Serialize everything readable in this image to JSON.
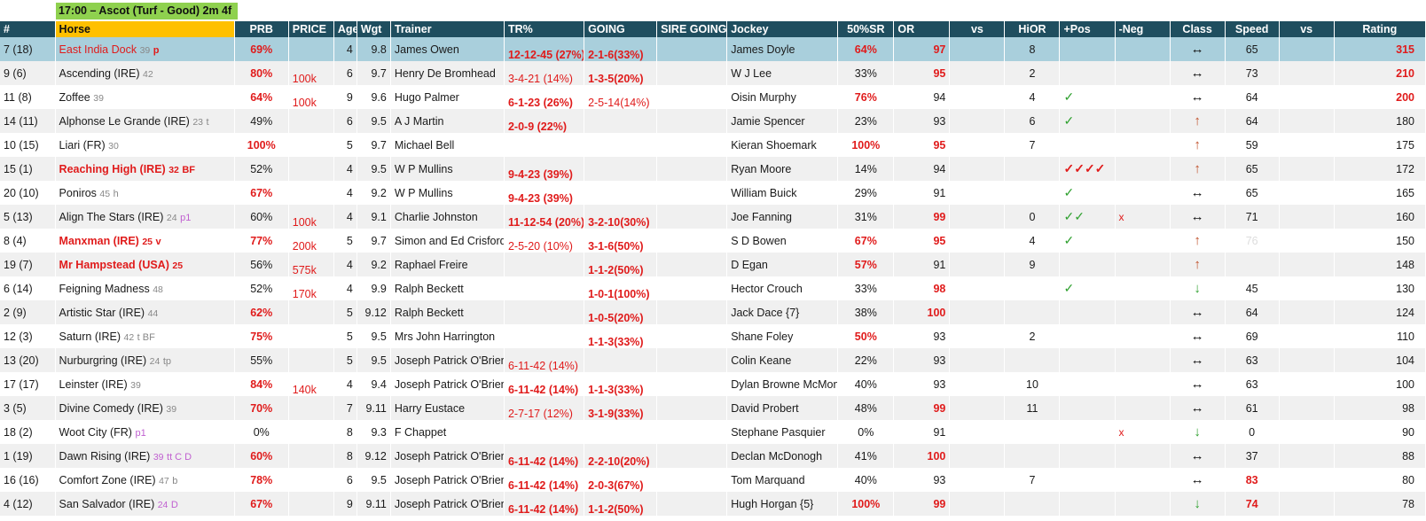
{
  "race": {
    "title": "17:00 – Ascot (Turf - Good) 2m 4f"
  },
  "headers": {
    "num": "#",
    "horse": "Horse",
    "prb": "PRB",
    "price": "PRICE",
    "age": "Age",
    "wgt": "Wgt",
    "trainer": "Trainer",
    "trp": "TR%",
    "going": "GOING",
    "sire_going": "SIRE GOING",
    "jockey": "Jockey",
    "sr": "50%SR",
    "or": "OR",
    "vs": "vs",
    "hior": "HiOR",
    "pos": "+Pos",
    "neg": "-Neg",
    "cls": "Class",
    "speed": "Speed",
    "vs2": "vs",
    "rating": "Rating"
  },
  "rows": [
    {
      "num": "7 (18)",
      "horse": "East India Dock",
      "meta": "39",
      "tag": "p",
      "prb": "69%",
      "price": "",
      "age": "4",
      "wgt": "9.8",
      "trainer": "James Owen",
      "trp": "12-12-45 (27%)",
      "going": "2-1-6(33%)",
      "jockey": "James Doyle",
      "sr": "64%",
      "or": "97",
      "hior": "8",
      "pos": "",
      "neg": "",
      "cls": "↔",
      "speed": "65",
      "rating": "315"
    },
    {
      "num": "9 (6)",
      "horse": "Ascending (IRE)",
      "meta": "42",
      "tag": "",
      "prb": "80%",
      "price": "100k",
      "age": "6",
      "wgt": "9.7",
      "trainer": "Henry De Bromhead",
      "trp": "3-4-21 (14%)",
      "going": "1-3-5(20%)",
      "jockey": "W J Lee",
      "sr": "33%",
      "or": "95",
      "hior": "2",
      "pos": "",
      "neg": "",
      "cls": "↔",
      "speed": "73",
      "rating": "210"
    },
    {
      "num": "11 (8)",
      "horse": "Zoffee",
      "meta": "39",
      "tag": "",
      "prb": "64%",
      "price": "100k",
      "age": "9",
      "wgt": "9.6",
      "trainer": "Hugo Palmer",
      "trp": "6-1-23 (26%)",
      "going": "2-5-14(14%)",
      "jockey": "Oisin Murphy",
      "sr": "76%",
      "or": "94",
      "hior": "4",
      "pos": "✓",
      "neg": "",
      "cls": "↔",
      "speed": "64",
      "rating": "200"
    },
    {
      "num": "14 (11)",
      "horse": "Alphonse Le Grande (IRE)",
      "meta": "23",
      "tag": "t",
      "prb": "49%",
      "price": "",
      "age": "6",
      "wgt": "9.5",
      "trainer": "A J Martin",
      "trp": "2-0-9 (22%)",
      "going": "",
      "jockey": "Jamie Spencer",
      "sr": "23%",
      "or": "93",
      "hior": "6",
      "pos": "✓",
      "neg": "",
      "cls": "↑",
      "speed": "64",
      "rating": "180"
    },
    {
      "num": "10 (15)",
      "horse": "Liari (FR)",
      "meta": "30",
      "tag": "",
      "prb": "100%",
      "price": "",
      "age": "5",
      "wgt": "9.7",
      "trainer": "Michael Bell",
      "trp": "",
      "going": "",
      "jockey": "Kieran Shoemark",
      "sr": "100%",
      "or": "95",
      "hior": "7",
      "pos": "",
      "neg": "",
      "cls": "↑",
      "speed": "59",
      "rating": "175"
    },
    {
      "num": "15 (1)",
      "horse": "Reaching High (IRE)",
      "meta": "32",
      "tag": "BF",
      "prb": "52%",
      "price": "",
      "age": "4",
      "wgt": "9.5",
      "trainer": "W P Mullins",
      "trp": "9-4-23 (39%)",
      "going": "",
      "jockey": "Ryan Moore",
      "sr": "14%",
      "or": "94",
      "hior": "",
      "pos": "✓✓✓✓",
      "neg": "",
      "cls": "↑",
      "speed": "65",
      "rating": "172"
    },
    {
      "num": "20 (10)",
      "horse": "Poniros",
      "meta": "45",
      "tag": "h",
      "prb": "67%",
      "price": "",
      "age": "4",
      "wgt": "9.2",
      "trainer": "W P Mullins",
      "trp": "9-4-23 (39%)",
      "going": "",
      "jockey": "William Buick",
      "sr": "29%",
      "or": "91",
      "hior": "",
      "pos": "✓",
      "neg": "",
      "cls": "↔",
      "speed": "65",
      "rating": "165"
    },
    {
      "num": "5 (13)",
      "horse": "Align The Stars (IRE)",
      "meta": "24",
      "tag": "p1",
      "prb": "60%",
      "price": "100k",
      "age": "4",
      "wgt": "9.1",
      "trainer": "Charlie Johnston",
      "trp": "11-12-54 (20%)",
      "going": "3-2-10(30%)",
      "jockey": "Joe Fanning",
      "sr": "31%",
      "or": "99",
      "hior": "0",
      "pos": "✓✓",
      "neg": "x",
      "cls": "↔",
      "speed": "71",
      "rating": "160"
    },
    {
      "num": "8 (4)",
      "horse": "Manxman (IRE)",
      "meta": "25",
      "tag": "v",
      "prb": "77%",
      "price": "200k",
      "age": "5",
      "wgt": "9.7",
      "trainer": "Simon and Ed Crisford",
      "trp": "2-5-20 (10%)",
      "going": "3-1-6(50%)",
      "jockey": "S D Bowen",
      "sr": "67%",
      "or": "95",
      "hior": "4",
      "pos": "✓",
      "neg": "",
      "cls": "↑",
      "speed": "76",
      "rating": "150"
    },
    {
      "num": "19 (7)",
      "horse": "Mr Hampstead (USA)",
      "meta": "25",
      "tag": "",
      "prb": "56%",
      "price": "575k",
      "age": "4",
      "wgt": "9.2",
      "trainer": "Raphael Freire",
      "trp": "",
      "going": "1-1-2(50%)",
      "jockey": "D Egan",
      "sr": "57%",
      "or": "91",
      "hior": "9",
      "pos": "",
      "neg": "",
      "cls": "↑",
      "speed": "",
      "rating": "148"
    },
    {
      "num": "6 (14)",
      "horse": "Feigning Madness",
      "meta": "48",
      "tag": "",
      "prb": "52%",
      "price": "170k",
      "age": "4",
      "wgt": "9.9",
      "trainer": "Ralph Beckett",
      "trp": "",
      "going": "1-0-1(100%)",
      "jockey": "Hector Crouch",
      "sr": "33%",
      "or": "98",
      "hior": "",
      "pos": "✓",
      "neg": "",
      "cls": "↓",
      "speed": "45",
      "rating": "130"
    },
    {
      "num": "2 (9)",
      "horse": "Artistic Star (IRE)",
      "meta": "44",
      "tag": "",
      "prb": "62%",
      "price": "",
      "age": "5",
      "wgt": "9.12",
      "trainer": "Ralph Beckett",
      "trp": "",
      "going": "1-0-5(20%)",
      "jockey": "Jack Dace {7}",
      "sr": "38%",
      "or": "100",
      "hior": "",
      "pos": "",
      "neg": "",
      "cls": "↔",
      "speed": "64",
      "rating": "124"
    },
    {
      "num": "12 (3)",
      "horse": "Saturn (IRE)",
      "meta": "42",
      "tag": "t BF",
      "prb": "75%",
      "price": "",
      "age": "5",
      "wgt": "9.5",
      "trainer": "Mrs John Harrington",
      "trp": "",
      "going": "1-1-3(33%)",
      "jockey": "Shane Foley",
      "sr": "50%",
      "or": "93",
      "hior": "2",
      "pos": "",
      "neg": "",
      "cls": "↔",
      "speed": "69",
      "rating": "110"
    },
    {
      "num": "13 (20)",
      "horse": "Nurburgring (IRE)",
      "meta": "24",
      "tag": "tp",
      "prb": "55%",
      "price": "",
      "age": "5",
      "wgt": "9.5",
      "trainer": "Joseph Patrick O'Brien",
      "trp": "6-11-42 (14%)",
      "going": "",
      "jockey": "Colin Keane",
      "sr": "22%",
      "or": "93",
      "hior": "",
      "pos": "",
      "neg": "",
      "cls": "↔",
      "speed": "63",
      "rating": "104"
    },
    {
      "num": "17 (17)",
      "horse": "Leinster (IRE)",
      "meta": "39",
      "tag": "",
      "prb": "84%",
      "price": "140k",
      "age": "4",
      "wgt": "9.4",
      "trainer": "Joseph Patrick O'Brien",
      "trp": "6-11-42 (14%)",
      "going": "1-1-3(33%)",
      "jockey": "Dylan Browne McMona",
      "sr": "40%",
      "or": "93",
      "hior": "10",
      "pos": "",
      "neg": "",
      "cls": "↔",
      "speed": "63",
      "rating": "100"
    },
    {
      "num": "3 (5)",
      "horse": "Divine Comedy (IRE)",
      "meta": "39",
      "tag": "",
      "prb": "70%",
      "price": "",
      "age": "7",
      "wgt": "9.11",
      "trainer": "Harry Eustace",
      "trp": "2-7-17 (12%)",
      "going": "3-1-9(33%)",
      "jockey": "David Probert",
      "sr": "48%",
      "or": "99",
      "hior": "11",
      "pos": "",
      "neg": "",
      "cls": "↔",
      "speed": "61",
      "rating": "98"
    },
    {
      "num": "18 (2)",
      "horse": "Woot City (FR)",
      "meta": "",
      "tag": "p1",
      "prb": "0%",
      "price": "",
      "age": "8",
      "wgt": "9.3",
      "trainer": "F Chappet",
      "trp": "",
      "going": "",
      "jockey": "Stephane Pasquier",
      "sr": "0%",
      "or": "91",
      "hior": "",
      "pos": "",
      "neg": "x",
      "cls": "↓",
      "speed": "0",
      "rating": "90"
    },
    {
      "num": "1 (19)",
      "horse": "Dawn Rising (IRE)",
      "meta": "39",
      "tag": "tt C D",
      "prb": "60%",
      "price": "",
      "age": "8",
      "wgt": "9.12",
      "trainer": "Joseph Patrick O'Brien",
      "trp": "6-11-42 (14%)",
      "going": "2-2-10(20%)",
      "jockey": "Declan McDonogh",
      "sr": "41%",
      "or": "100",
      "hior": "",
      "pos": "",
      "neg": "",
      "cls": "↔",
      "speed": "37",
      "rating": "88"
    },
    {
      "num": "16 (16)",
      "horse": "Comfort Zone (IRE)",
      "meta": "47",
      "tag": "b",
      "prb": "78%",
      "price": "",
      "age": "6",
      "wgt": "9.5",
      "trainer": "Joseph Patrick O'Brien",
      "trp": "6-11-42 (14%)",
      "going": "2-0-3(67%)",
      "jockey": "Tom Marquand",
      "sr": "40%",
      "or": "93",
      "hior": "7",
      "pos": "",
      "neg": "",
      "cls": "↔",
      "speed": "83",
      "rating": "80"
    },
    {
      "num": "4 (12)",
      "horse": "San Salvador (IRE)",
      "meta": "24",
      "tag": "D",
      "prb": "67%",
      "price": "",
      "age": "9",
      "wgt": "9.11",
      "trainer": "Joseph Patrick O'Brien",
      "trp": "6-11-42 (14%)",
      "going": "1-1-2(50%)",
      "jockey": "Hugh Horgan {5}",
      "sr": "100%",
      "or": "99",
      "hior": "",
      "pos": "",
      "neg": "",
      "cls": "↓",
      "speed": "74",
      "rating": "78"
    }
  ]
}
